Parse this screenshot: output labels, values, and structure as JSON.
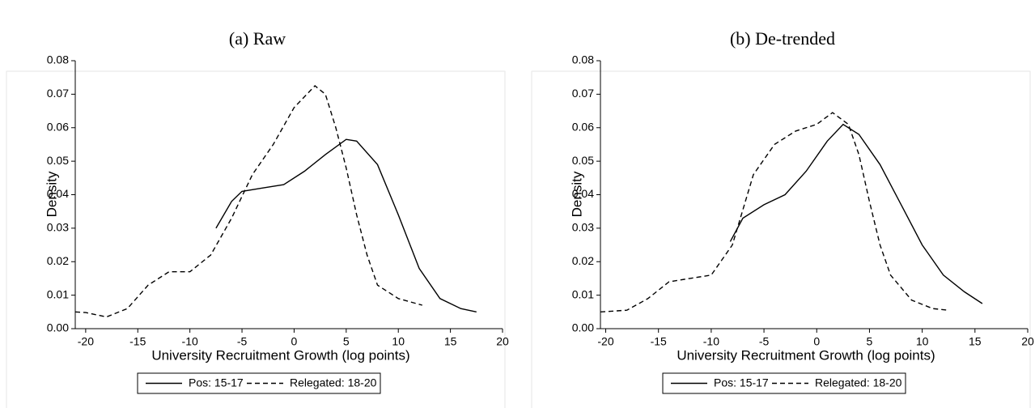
{
  "chart_data": [
    {
      "type": "line",
      "title": "(a) Raw",
      "xlabel": "University Recruitment Growth (log points)",
      "ylabel": "Density",
      "xlim": [
        -21,
        20
      ],
      "ylim": [
        0,
        0.08
      ],
      "xticks": [
        -20,
        -15,
        -10,
        -5,
        0,
        5,
        10,
        15,
        20
      ],
      "yticks": [
        {
          "value": 0,
          "label": "0.00"
        },
        {
          "value": 0.01,
          "label": "0.01"
        },
        {
          "value": 0.02,
          "label": "0.02"
        },
        {
          "value": 0.03,
          "label": "0.03"
        },
        {
          "value": 0.04,
          "label": "0.04"
        },
        {
          "value": 0.05,
          "label": "0.05"
        },
        {
          "value": 0.06,
          "label": "0.06"
        },
        {
          "value": 0.07,
          "label": "0.07"
        },
        {
          "value": 0.08,
          "label": "0.08"
        }
      ],
      "series": [
        {
          "name": "Pos: 15-17",
          "color": "#000000",
          "dash": "solid",
          "x": [
            -7.5,
            -6,
            -5,
            -3,
            -1,
            1,
            3,
            5,
            6,
            8,
            10,
            12,
            14,
            16,
            17.5
          ],
          "values": [
            0.03,
            0.038,
            0.041,
            0.042,
            0.043,
            0.047,
            0.052,
            0.0565,
            0.056,
            0.049,
            0.034,
            0.018,
            0.009,
            0.006,
            0.005
          ]
        },
        {
          "name": "Relegated: 18-20",
          "color": "#000000",
          "dash": "dashed",
          "x": [
            -21,
            -20,
            -18,
            -16,
            -14,
            -12,
            -10,
            -8,
            -6,
            -4,
            -2,
            0,
            2,
            3,
            4,
            5,
            6,
            7,
            8,
            10,
            12.3
          ],
          "values": [
            0.005,
            0.0048,
            0.0035,
            0.006,
            0.013,
            0.017,
            0.017,
            0.022,
            0.033,
            0.046,
            0.055,
            0.066,
            0.0725,
            0.07,
            0.06,
            0.048,
            0.034,
            0.022,
            0.013,
            0.009,
            0.007
          ]
        }
      ]
    },
    {
      "type": "line",
      "title": "(b) De-trended",
      "xlabel": "University Recruitment Growth (log points)",
      "ylabel": "Density",
      "xlim": [
        -20.5,
        20
      ],
      "ylim": [
        0,
        0.08
      ],
      "xticks": [
        -20,
        -15,
        -10,
        -5,
        0,
        5,
        10,
        15,
        20
      ],
      "yticks": [
        {
          "value": 0,
          "label": "0.00"
        },
        {
          "value": 0.01,
          "label": "0.01"
        },
        {
          "value": 0.02,
          "label": "0.02"
        },
        {
          "value": 0.03,
          "label": "0.03"
        },
        {
          "value": 0.04,
          "label": "0.04"
        },
        {
          "value": 0.05,
          "label": "0.05"
        },
        {
          "value": 0.06,
          "label": "0.06"
        },
        {
          "value": 0.07,
          "label": "0.07"
        },
        {
          "value": 0.08,
          "label": "0.08"
        }
      ],
      "series": [
        {
          "name": "Pos: 15-17",
          "color": "#000000",
          "dash": "solid",
          "x": [
            -8.2,
            -7,
            -5,
            -3,
            -1,
            1,
            2.5,
            4,
            6,
            8,
            10,
            12,
            14,
            15.7
          ],
          "values": [
            0.026,
            0.033,
            0.037,
            0.04,
            0.047,
            0.056,
            0.061,
            0.058,
            0.049,
            0.037,
            0.025,
            0.016,
            0.011,
            0.0075
          ]
        },
        {
          "name": "Relegated: 18-20",
          "color": "#000000",
          "dash": "dashed",
          "x": [
            -20.5,
            -18,
            -16,
            -14,
            -12,
            -10,
            -8,
            -6,
            -4,
            -2,
            0,
            1.5,
            3,
            4,
            5,
            6,
            7,
            9,
            11,
            12.5
          ],
          "values": [
            0.005,
            0.0055,
            0.009,
            0.014,
            0.015,
            0.016,
            0.025,
            0.046,
            0.055,
            0.059,
            0.061,
            0.0645,
            0.061,
            0.052,
            0.038,
            0.025,
            0.016,
            0.0085,
            0.006,
            0.0055
          ]
        }
      ]
    }
  ]
}
